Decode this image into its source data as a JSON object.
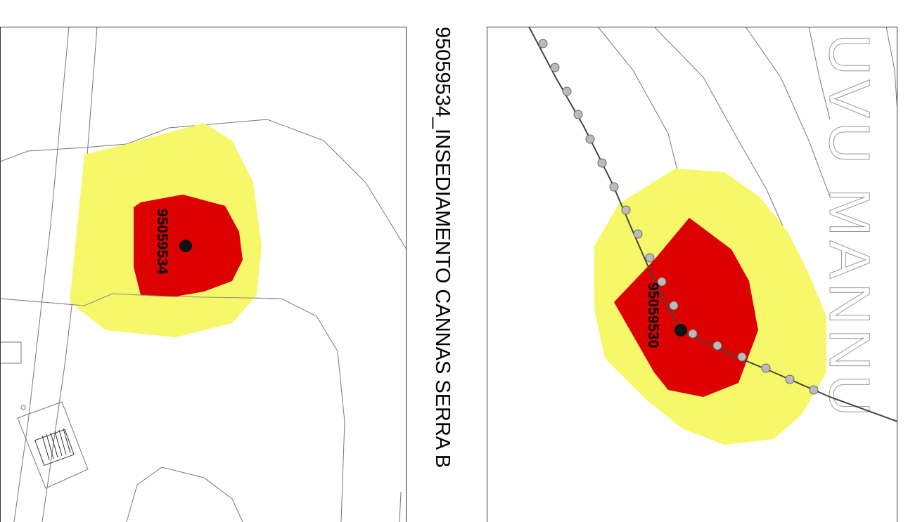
{
  "title": "95059534_INSEDIAMENTO CANNAS SERRA B",
  "left_map": {
    "label": "95059534"
  },
  "right_map": {
    "label": "95059530",
    "place_name": "UVU MANNU"
  }
}
